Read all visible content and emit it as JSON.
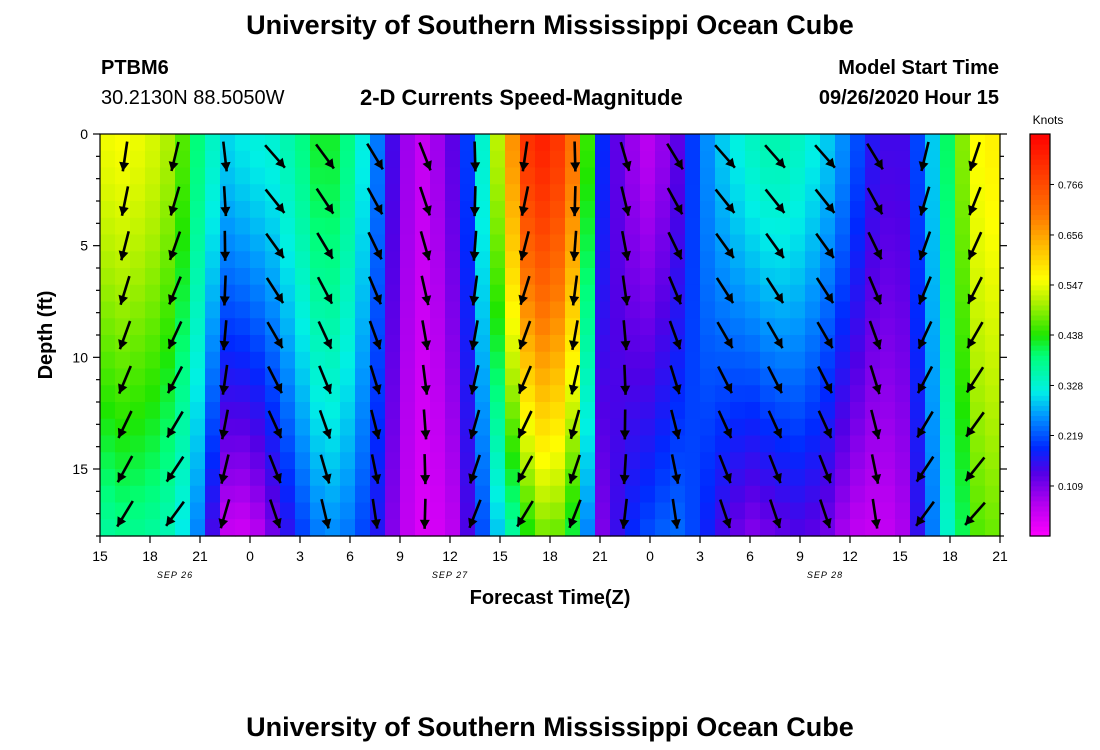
{
  "title_top": "University of Southern Mississippi Ocean Cube",
  "title_bottom": "University of Southern Mississippi Ocean Cube",
  "station": "PTBM6",
  "station_coords": "30.2130N 88.5050W",
  "plot_title": "2-D Currents Speed-Magnitude",
  "model_start_label": "Model Start Time",
  "model_start_value": "09/26/2020 Hour 15",
  "chart_data": {
    "type": "heatmap",
    "title": "2-D Currents Speed-Magnitude",
    "xlabel": "Forecast Time(Z)",
    "ylabel": "Depth (ft)",
    "x_range": [
      15,
      69
    ],
    "y_range": [
      0,
      18
    ],
    "x_ticks": [
      "15",
      "18",
      "21",
      "0",
      "3",
      "6",
      "9",
      "12",
      "15",
      "18",
      "21",
      "0",
      "3",
      "6",
      "9",
      "12",
      "15",
      "18",
      "21"
    ],
    "y_ticks": [
      "0",
      "5",
      "10",
      "15"
    ],
    "date_labels": [
      {
        "text": "SEP 26",
        "hour": 19.5
      },
      {
        "text": "SEP 27",
        "hour": 36
      },
      {
        "text": "SEP 28",
        "hour": 58.5
      }
    ],
    "colorbar": {
      "label": "Knots",
      "range": [
        0,
        0.876
      ],
      "ticks": [
        "0.766",
        "0.656",
        "0.547",
        "0.438",
        "0.328",
        "0.219",
        "0.109"
      ]
    },
    "speed_profile": [
      {
        "hour": 15,
        "surface": 0.55,
        "bottom": 0.36
      },
      {
        "hour": 16.5,
        "surface": 0.56,
        "bottom": 0.38
      },
      {
        "hour": 18,
        "surface": 0.54,
        "bottom": 0.37
      },
      {
        "hour": 19.5,
        "surface": 0.5,
        "bottom": 0.34
      },
      {
        "hour": 21,
        "surface": 0.38,
        "bottom": 0.24
      },
      {
        "hour": 22.5,
        "surface": 0.3,
        "bottom": 0.05
      },
      {
        "hour": 24,
        "surface": 0.32,
        "bottom": 0.04
      },
      {
        "hour": 25.5,
        "surface": 0.33,
        "bottom": 0.12
      },
      {
        "hour": 27,
        "surface": 0.38,
        "bottom": 0.2
      },
      {
        "hour": 28.5,
        "surface": 0.44,
        "bottom": 0.26
      },
      {
        "hour": 30,
        "surface": 0.38,
        "bottom": 0.24
      },
      {
        "hour": 31.5,
        "surface": 0.26,
        "bottom": 0.18
      },
      {
        "hour": 33,
        "surface": 0.1,
        "bottom": 0.07
      },
      {
        "hour": 34.5,
        "surface": 0.05,
        "bottom": 0.03
      },
      {
        "hour": 36,
        "surface": 0.12,
        "bottom": 0.05
      },
      {
        "hour": 37.5,
        "surface": 0.24,
        "bottom": 0.18
      },
      {
        "hour": 39,
        "surface": 0.55,
        "bottom": 0.3
      },
      {
        "hour": 40.5,
        "surface": 0.8,
        "bottom": 0.42
      },
      {
        "hour": 42,
        "surface": 0.84,
        "bottom": 0.5
      },
      {
        "hour": 43.5,
        "surface": 0.7,
        "bottom": 0.4
      },
      {
        "hour": 45,
        "surface": 0.2,
        "bottom": 0.1
      },
      {
        "hour": 46.5,
        "surface": 0.1,
        "bottom": 0.18
      },
      {
        "hour": 48,
        "surface": 0.06,
        "bottom": 0.22
      },
      {
        "hour": 49.5,
        "surface": 0.12,
        "bottom": 0.24
      },
      {
        "hour": 51,
        "surface": 0.24,
        "bottom": 0.2
      },
      {
        "hour": 52.5,
        "surface": 0.3,
        "bottom": 0.14
      },
      {
        "hour": 54,
        "surface": 0.34,
        "bottom": 0.1
      },
      {
        "hour": 55.5,
        "surface": 0.36,
        "bottom": 0.12
      },
      {
        "hour": 57,
        "surface": 0.34,
        "bottom": 0.14
      },
      {
        "hour": 58.5,
        "surface": 0.3,
        "bottom": 0.12
      },
      {
        "hour": 60,
        "surface": 0.24,
        "bottom": 0.06
      },
      {
        "hour": 61.5,
        "surface": 0.16,
        "bottom": 0.05
      },
      {
        "hour": 63,
        "surface": 0.14,
        "bottom": 0.06
      },
      {
        "hour": 64.5,
        "surface": 0.24,
        "bottom": 0.2
      },
      {
        "hour": 66,
        "surface": 0.42,
        "bottom": 0.35
      },
      {
        "hour": 67.5,
        "surface": 0.56,
        "bottom": 0.46
      },
      {
        "hour": 69,
        "surface": 0.58,
        "bottom": 0.48
      }
    ],
    "arrow_hours": [
      16.5,
      19.5,
      22.5,
      25.5,
      28.5,
      31.5,
      34.5,
      37.5,
      40.5,
      43.5,
      46.5,
      49.5,
      52.5,
      55.5,
      58.5,
      61.5,
      64.5,
      67.5
    ],
    "arrow_depths": [
      0.2,
      2.2,
      4.2,
      6.2,
      8.2,
      10.2,
      12.2,
      14.2,
      16.2
    ],
    "arrow_direction_deg": [
      200,
      205,
      185,
      150,
      155,
      160,
      170,
      190,
      200,
      190,
      175,
      160,
      150,
      150,
      150,
      160,
      205,
      210
    ]
  }
}
